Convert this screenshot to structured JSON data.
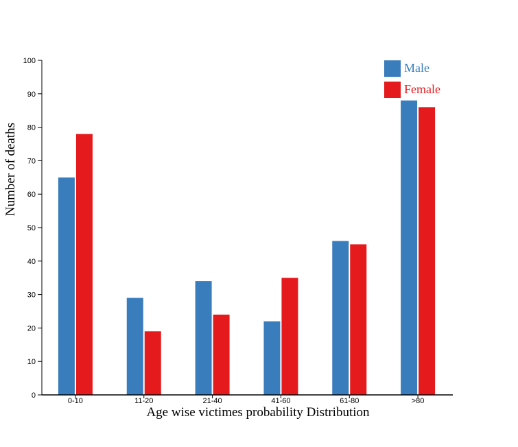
{
  "chart_data": {
    "type": "bar",
    "title": "",
    "xlabel": "Age wise victimes probability Distribution",
    "ylabel": "Number of deaths",
    "categories": [
      "0-10",
      "11-20",
      "21-40",
      "41-60",
      "61-80",
      ">80"
    ],
    "series": [
      {
        "name": "Male",
        "color": "#3a7dbd",
        "values": [
          65,
          29,
          34,
          22,
          46,
          88
        ]
      },
      {
        "name": "Female",
        "color": "#e41a1c",
        "values": [
          78,
          19,
          24,
          35,
          45,
          86
        ]
      }
    ],
    "ylim": [
      0,
      100
    ],
    "yticks": [
      0,
      10,
      20,
      30,
      40,
      50,
      60,
      70,
      80,
      90,
      100
    ],
    "grid": false,
    "legend_position": "top-right"
  }
}
